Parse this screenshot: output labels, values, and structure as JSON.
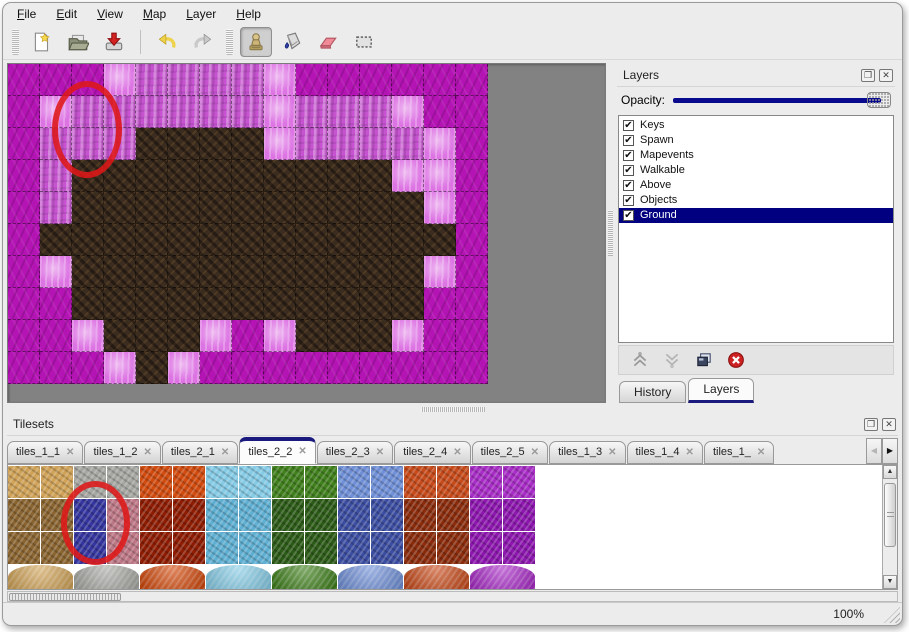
{
  "menubar": {
    "items": [
      "File",
      "Edit",
      "View",
      "Map",
      "Layer",
      "Help"
    ]
  },
  "toolbar": {
    "buttons": [
      "new-file",
      "open-file",
      "save-file",
      "undo",
      "redo",
      "stamp-tool",
      "fill-tool",
      "eraser-tool",
      "select-tool"
    ],
    "active_button": "stamp-tool"
  },
  "map": {
    "grid": [
      "MMMHPPPPHMMMMMM",
      "MHPPPPPPHPPPHMM",
      "MPPPBBBBHPPPPHM",
      "MPBBBBBBBBBBHHM",
      "MPBBBBBBBBBBBHM",
      "MBBBBBBBBBBBBBM",
      "MHBBBBBBBBBBBHM",
      "MMBBBBBBBBBBBMM",
      "MMHBBBHMHBBBHMM",
      "MMMHBHMMMMMMMMM"
    ],
    "legend": {
      "M": "magenta-ground",
      "P": "light-pink-ground",
      "H": "bright-pink-highlight",
      "B": "dark-cave-floor"
    },
    "colors": {
      "M": "#b414b4",
      "P": "#c653cf",
      "H": "#dd74e3",
      "B": "#3b2c20"
    },
    "annotation": "red-ellipse-circle"
  },
  "layers_panel": {
    "title": "Layers",
    "opacity_label": "Opacity:",
    "opacity_value": 1.0,
    "layers": [
      {
        "name": "Keys",
        "checked": true,
        "selected": false
      },
      {
        "name": "Spawn",
        "checked": true,
        "selected": false
      },
      {
        "name": "Mapevents",
        "checked": true,
        "selected": false
      },
      {
        "name": "Walkable",
        "checked": true,
        "selected": false
      },
      {
        "name": "Above",
        "checked": true,
        "selected": false
      },
      {
        "name": "Objects",
        "checked": true,
        "selected": false
      },
      {
        "name": "Ground",
        "checked": true,
        "selected": true
      }
    ],
    "buttons": [
      "raise-layer",
      "lower-layer",
      "duplicate-layer",
      "delete-layer"
    ],
    "tabs": [
      {
        "label": "History",
        "active": false
      },
      {
        "label": "Layers",
        "active": true
      }
    ]
  },
  "tilesets_panel": {
    "title": "Tilesets",
    "tabs": [
      {
        "label": "tiles_1_1",
        "active": false
      },
      {
        "label": "tiles_1_2",
        "active": false
      },
      {
        "label": "tiles_2_1",
        "active": false
      },
      {
        "label": "tiles_2_2",
        "active": true
      },
      {
        "label": "tiles_2_3",
        "active": false
      },
      {
        "label": "tiles_2_4",
        "active": false
      },
      {
        "label": "tiles_2_5",
        "active": false
      },
      {
        "label": "tiles_1_3",
        "active": false
      },
      {
        "label": "tiles_1_4",
        "active": false
      },
      {
        "label": "tiles_1_",
        "active": false
      }
    ],
    "rows": [
      [
        "tan",
        "tan",
        "gray",
        "gray",
        "lava",
        "lava",
        "ice",
        "ice",
        "vine",
        "vine",
        "crystal",
        "crystal",
        "ember",
        "ember",
        "violet",
        "violet"
      ],
      [
        "bark",
        "bark",
        "navy",
        "mauve",
        "darkred",
        "darkred",
        "icebrick",
        "icebrick",
        "darkvine",
        "darkvine",
        "darkcrystal",
        "darkcrystal",
        "rust",
        "rust",
        "darkviolet",
        "darkviolet"
      ],
      [
        "bark",
        "bark",
        "navy",
        "mauve",
        "darkred",
        "darkred",
        "icebrick",
        "icebrick",
        "darkvine",
        "darkvine",
        "darkcrystal",
        "darkcrystal",
        "rust",
        "rust",
        "darkviolet",
        "darkviolet"
      ]
    ],
    "blobs": [
      "tan",
      "gray",
      "lava",
      "ice",
      "vine",
      "crystal",
      "ember",
      "violet"
    ],
    "colors": {
      "tan": "#cfa257",
      "gray": "#a6a6a2",
      "lava": "#d14a0e",
      "ice": "#85cbe5",
      "vine": "#3f7f1c",
      "crystal": "#6f8fd6",
      "ember": "#c64a1a",
      "violet": "#a82cc6",
      "bark": "#8a6430",
      "navy": "#34359e",
      "mauve": "#bd7685",
      "darkred": "#8e1c02",
      "icebrick": "#5fafd2",
      "darkvine": "#2c5a17",
      "darkcrystal": "#3b4da0",
      "rust": "#8a2c0c",
      "darkviolet": "#8c16ae"
    },
    "annotation": "red-ellipse-circle"
  },
  "statusbar": {
    "zoom": "100%"
  },
  "icons": {
    "close_glyph": "✕",
    "check_glyph": "✔",
    "float_glyph": "❐",
    "up_arrow": "▲",
    "down_arrow": "▼",
    "left_arrow": "◀",
    "right_arrow": "▶"
  }
}
